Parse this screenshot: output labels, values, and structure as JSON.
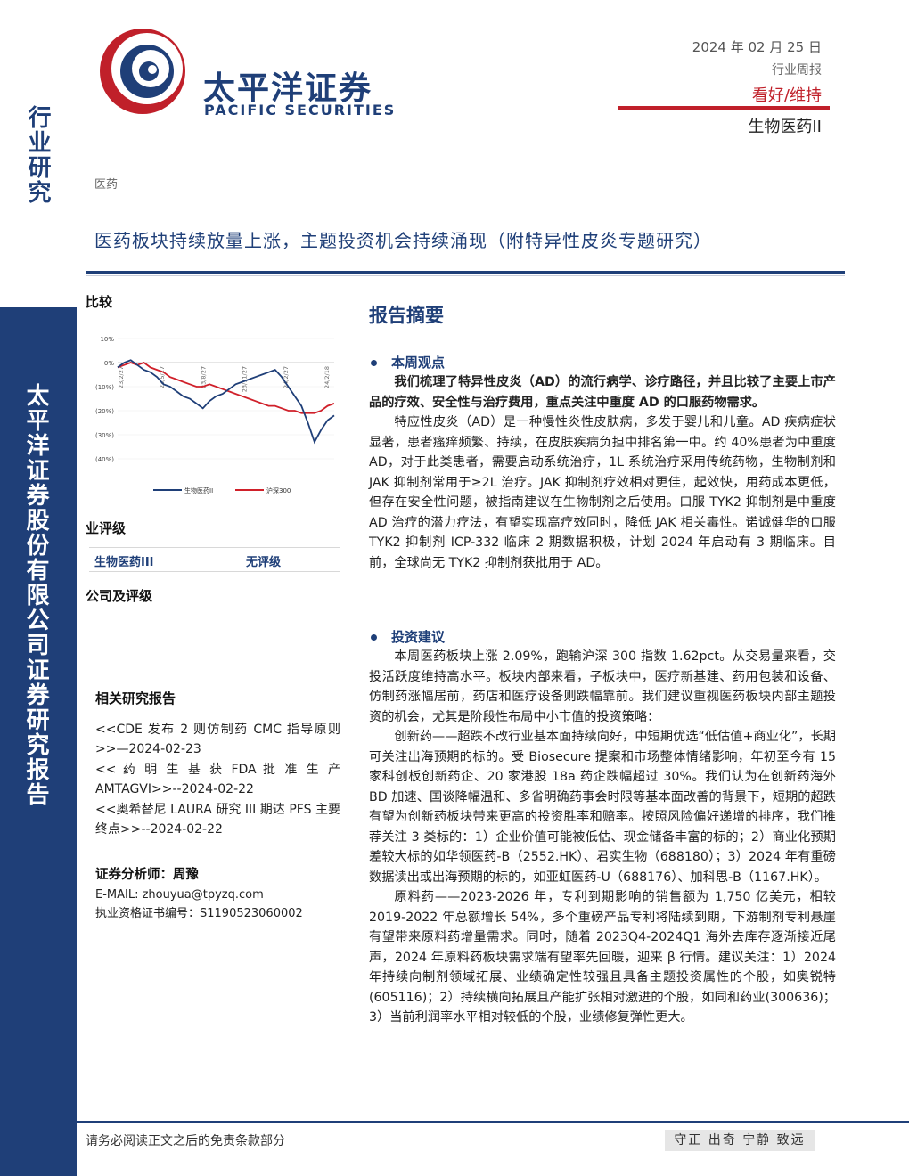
{
  "header": {
    "logo_cn": "太平洋证券",
    "logo_en": "PACIFIC SECURITIES",
    "date": "2024 年 02 月 25 日",
    "report_type": "行业周报",
    "rating": "看好/维持",
    "sector": "生物医药II",
    "industry_tag": "医药",
    "title": "医药板块持续放量上涨，主题投资机会持续涌现（附特异性皮炎专题研究）"
  },
  "sidebar": {
    "top_text": "行业研究",
    "bottom_text": "太平洋证券股份有限公司证券研究报告"
  },
  "colors": {
    "brand_blue": "#1f3f78",
    "brand_red": "#c0202a"
  },
  "left": {
    "compare_heading": "比较",
    "industry_rating_heading": "业评级",
    "rating_sector": "生物医药III",
    "rating_value": "无评级",
    "company_rating_heading": "公司及评级",
    "related_heading": "相关研究报告",
    "related_reports": [
      "<<CDE 发布 2 则仿制药 CMC 指导原则>>—2024-02-23",
      "<< 药 明 生 基 获 FDA 批 准 生 产 AMTAGVI>>--2024-02-22",
      "<<奥希替尼 LAURA 研究 III 期达 PFS 主要终点>>--2024-02-22"
    ],
    "analyst_label": "证券分析师：周豫",
    "email": "E-MAIL: zhouyua@tpyzq.com",
    "license": "执业资格证书编号：S1190523060002"
  },
  "chart_data": {
    "type": "line",
    "title": "",
    "ylim": [
      -40,
      10
    ],
    "yticks": [
      "10%",
      "0%",
      "(10%)",
      "(20%)",
      "(30%)",
      "(40%)"
    ],
    "xticks": [
      "23/2/27",
      "23/5/27",
      "23/8/27",
      "23/11/27",
      "24/2/27"
    ],
    "x_last_label": "24/2/18",
    "series": [
      {
        "name": "生物医药II",
        "color": "#1f3f78",
        "values": [
          -2,
          0,
          1,
          -1,
          -3,
          -4,
          -6,
          -9,
          -10,
          -12,
          -14,
          -15,
          -17,
          -19,
          -16,
          -14,
          -13,
          -11,
          -9,
          -8,
          -7,
          -6,
          -5,
          -4,
          -3,
          -6,
          -10,
          -14,
          -18,
          -25,
          -33,
          -28,
          -24,
          -22
        ]
      },
      {
        "name": "沪深300",
        "color": "#d0202a",
        "values": [
          -2,
          -1,
          0,
          -1,
          0,
          -2,
          -3,
          -4,
          -6,
          -7,
          -8,
          -9,
          -10,
          -10,
          -9,
          -10,
          -11,
          -12,
          -13,
          -14,
          -15,
          -16,
          -17,
          -18,
          -18,
          -19,
          -20,
          -20,
          -21,
          -21,
          -21,
          -20,
          -18,
          -17
        ]
      }
    ]
  },
  "summary": {
    "title": "报告摘要",
    "section1_head": "本周观点",
    "section1_lead": "我们梳理了特异性皮炎（AD）的流行病学、诊疗路径，并且比较了主要上市产品的疗效、安全性与治疗费用，重点关注中重度 AD 的口服药物需求。",
    "section1_body": "特应性皮炎（AD）是一种慢性炎性皮肤病，多发于婴儿和儿童。AD 疾病症状显著，患者瘙痒频繁、持续，在皮肤疾病负担中排名第一中。约 40%患者为中重度 AD，对于此类患者，需要启动系统治疗，1L 系统治疗采用传统药物，生物制剂和 JAK 抑制剂常用于≥2L 治疗。JAK 抑制剂疗效相对更佳，起效快，用药成本更低，但存在安全性问题，被指南建议在生物制剂之后使用。口服 TYK2 抑制剂是中重度 AD 治疗的潜力疗法，有望实现高疗效同时，降低 JAK 相关毒性。诺诚健华的口服 TYK2 抑制剂 ICP-332 临床 2 期数据积极，计划 2024 年启动有 3 期临床。目前，全球尚无 TYK2 抑制剂获批用于 AD。",
    "section2_head": "投资建议",
    "section2_p1": "本周医药板块上涨 2.09%，跑输沪深 300 指数 1.62pct。从交易量来看，交投活跃度维持高水平。板块内部来看，子板块中，医疗新基建、药用包装和设备、仿制药涨幅居前，药店和医疗设备则跌幅靠前。我们建议重视医药板块内部主题投资的机会，尤其是阶段性布局中小市值的投资策略：",
    "section2_p2": "创新药——超跌不改行业基本面持续向好，中短期优选“低估值+商业化”，长期可关注出海预期的标的。受 Biosecure 提案和市场整体情绪影响，年初至今有 15 家科创板创新药企、20 家港股 18a 药企跌幅超过 30%。我们认为在创新药海外 BD 加速、国谈降幅温和、多省明确药事会时限等基本面改善的背景下，短期的超跌有望为创新药板块带来更高的投资胜率和赔率。按照风险偏好递增的排序，我们推荐关注 3 类标的：1）企业价值可能被低估、现金储备丰富的标的；2）商业化预期差较大标的如华领医药-B（2552.HK）、君实生物（688180）；3）2024 年有重磅数据读出或出海预期的标的，如亚虹医药-U（688176）、加科思-B（1167.HK）。",
    "section2_p3": "原料药——2023-2026 年，专利到期影响的销售额为 1,750 亿美元，相较 2019-2022 年总额增长 54%，多个重磅产品专利将陆续到期，下游制剂专利悬崖有望带来原料药增量需求。同时，随着 2023Q4-2024Q1 海外去库存逐渐接近尾声，2024 年原料药板块需求端有望率先回暖，迎来 β 行情。建议关注：1）2024 年持续向制剂领域拓展、业绩确定性较强且具备主题投资属性的个股，如奥锐特(605116)；2）持续横向拓展且产能扩张相对激进的个股，如同和药业(300636)；3）当前利润率水平相对较低的个股，业绩修复弹性更大。"
  },
  "footer": {
    "disclaimer": "请务必阅读正文之后的免责条款部分",
    "motto": "守正 出奇 宁静 致远"
  }
}
